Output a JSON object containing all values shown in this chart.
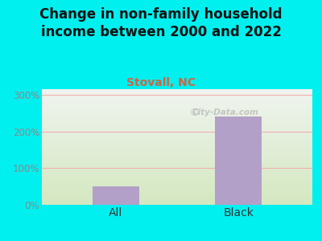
{
  "title": "Change in non-family household\nincome between 2000 and 2022",
  "subtitle": "Stovall, NC",
  "categories": [
    "All",
    "Black"
  ],
  "values": [
    50,
    240
  ],
  "bar_color": "#b3a0c8",
  "background_outer": "#00f0f0",
  "background_inner_bottom": "#d4e8c0",
  "background_inner_top": "#f0f4f0",
  "yticks": [
    0,
    100,
    200,
    300
  ],
  "ytick_labels": [
    "0%",
    "100%",
    "200%",
    "300%"
  ],
  "ylim": [
    0,
    315
  ],
  "title_fontsize": 12,
  "subtitle_fontsize": 10,
  "subtitle_color": "#cc6644",
  "tick_label_color": "#888888",
  "xtick_label_color": "#333333",
  "watermark": "City-Data.com",
  "grid_color": "#f0b0b0",
  "title_color": "#111111"
}
